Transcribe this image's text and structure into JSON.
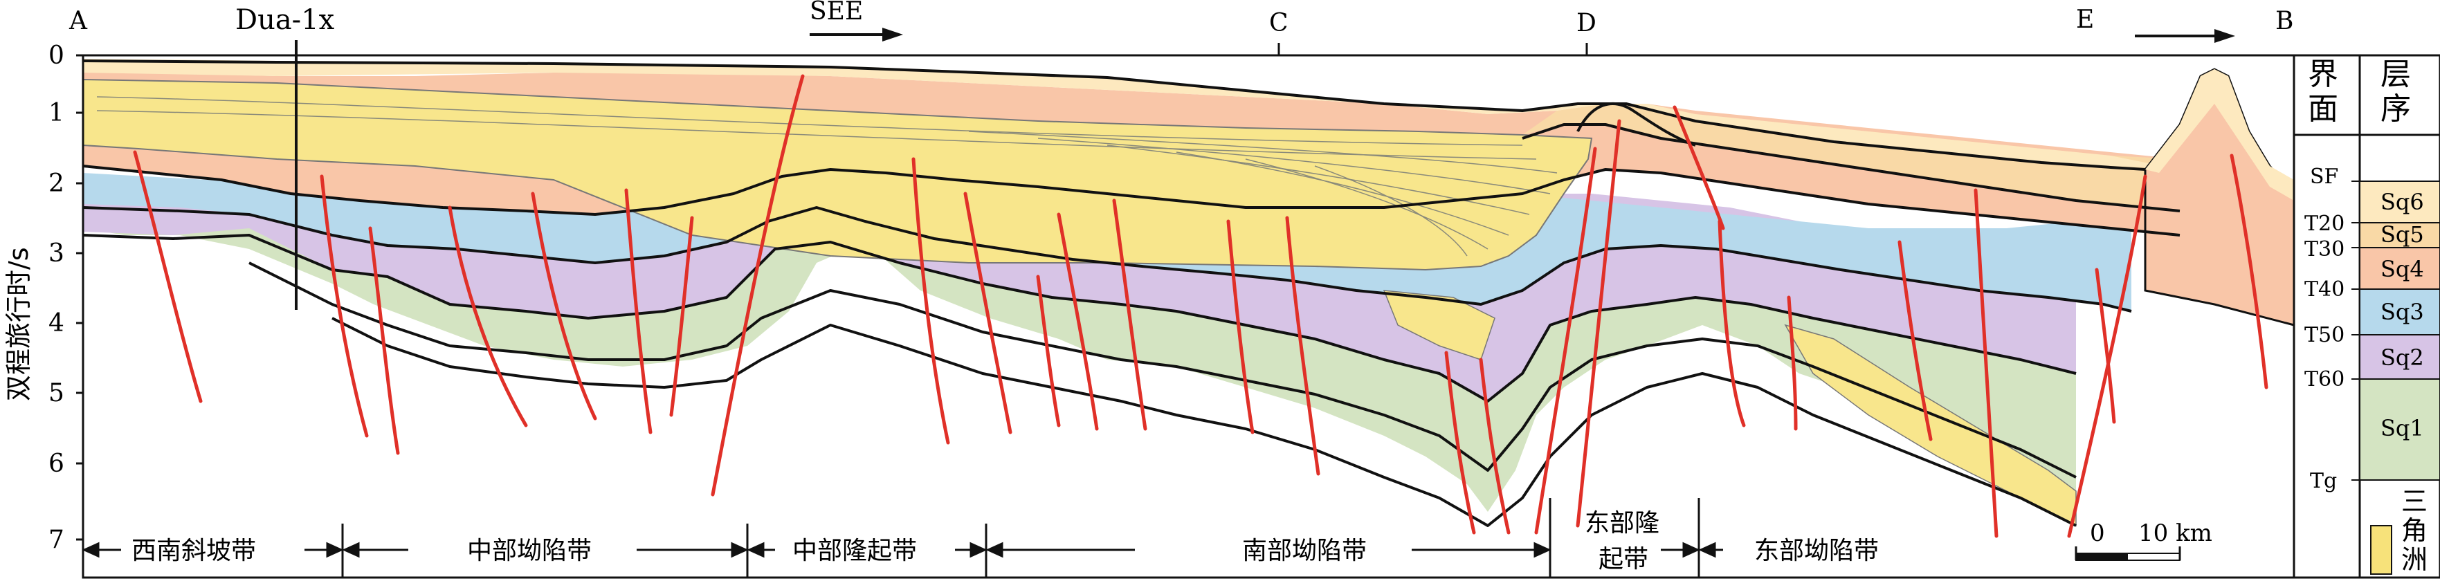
{
  "section_markers": {
    "a": "A",
    "well": "Dua-1x",
    "direction": "SEE",
    "c": "C",
    "d": "D",
    "e": "E",
    "b": "B"
  },
  "y_axis": {
    "label": "双程旅行时/s",
    "ticks": [
      "0",
      "1",
      "2",
      "3",
      "4",
      "5",
      "6",
      "7"
    ]
  },
  "zones": [
    {
      "label": "西南斜坡带"
    },
    {
      "label": "中部坳陷带"
    },
    {
      "label": "中部隆起带"
    },
    {
      "label": "南部坳陷带"
    },
    {
      "label_line1": "东部隆",
      "label_line2": "起带"
    },
    {
      "label": "东部坳陷带"
    }
  ],
  "scale_bar": {
    "start": "0",
    "end": "10 km"
  },
  "legend": {
    "col1_header_1": "界",
    "col1_header_2": "面",
    "col2_header_1": "层",
    "col2_header_2": "序",
    "interfaces": [
      "SF",
      "T20",
      "T30",
      "T40",
      "T50",
      "T60",
      "Tg"
    ],
    "sequences": [
      {
        "label": "Sq6",
        "color": "#fde9bf"
      },
      {
        "label": "Sq5",
        "color": "#f9d9a6"
      },
      {
        "label": "Sq4",
        "color": "#f9c6a8"
      },
      {
        "label": "Sq3",
        "color": "#b6d9ec"
      },
      {
        "label": "Sq2",
        "color": "#d7c4e6"
      },
      {
        "label": "Sq1",
        "color": "#d4e4c2"
      }
    ],
    "delta": {
      "l1": "三",
      "l2": "角",
      "l3": "洲",
      "color": "#f7e27a"
    }
  },
  "colors": {
    "fault": "#e03028",
    "horizon": "#111111",
    "delta_fill": "#f8e68c"
  }
}
